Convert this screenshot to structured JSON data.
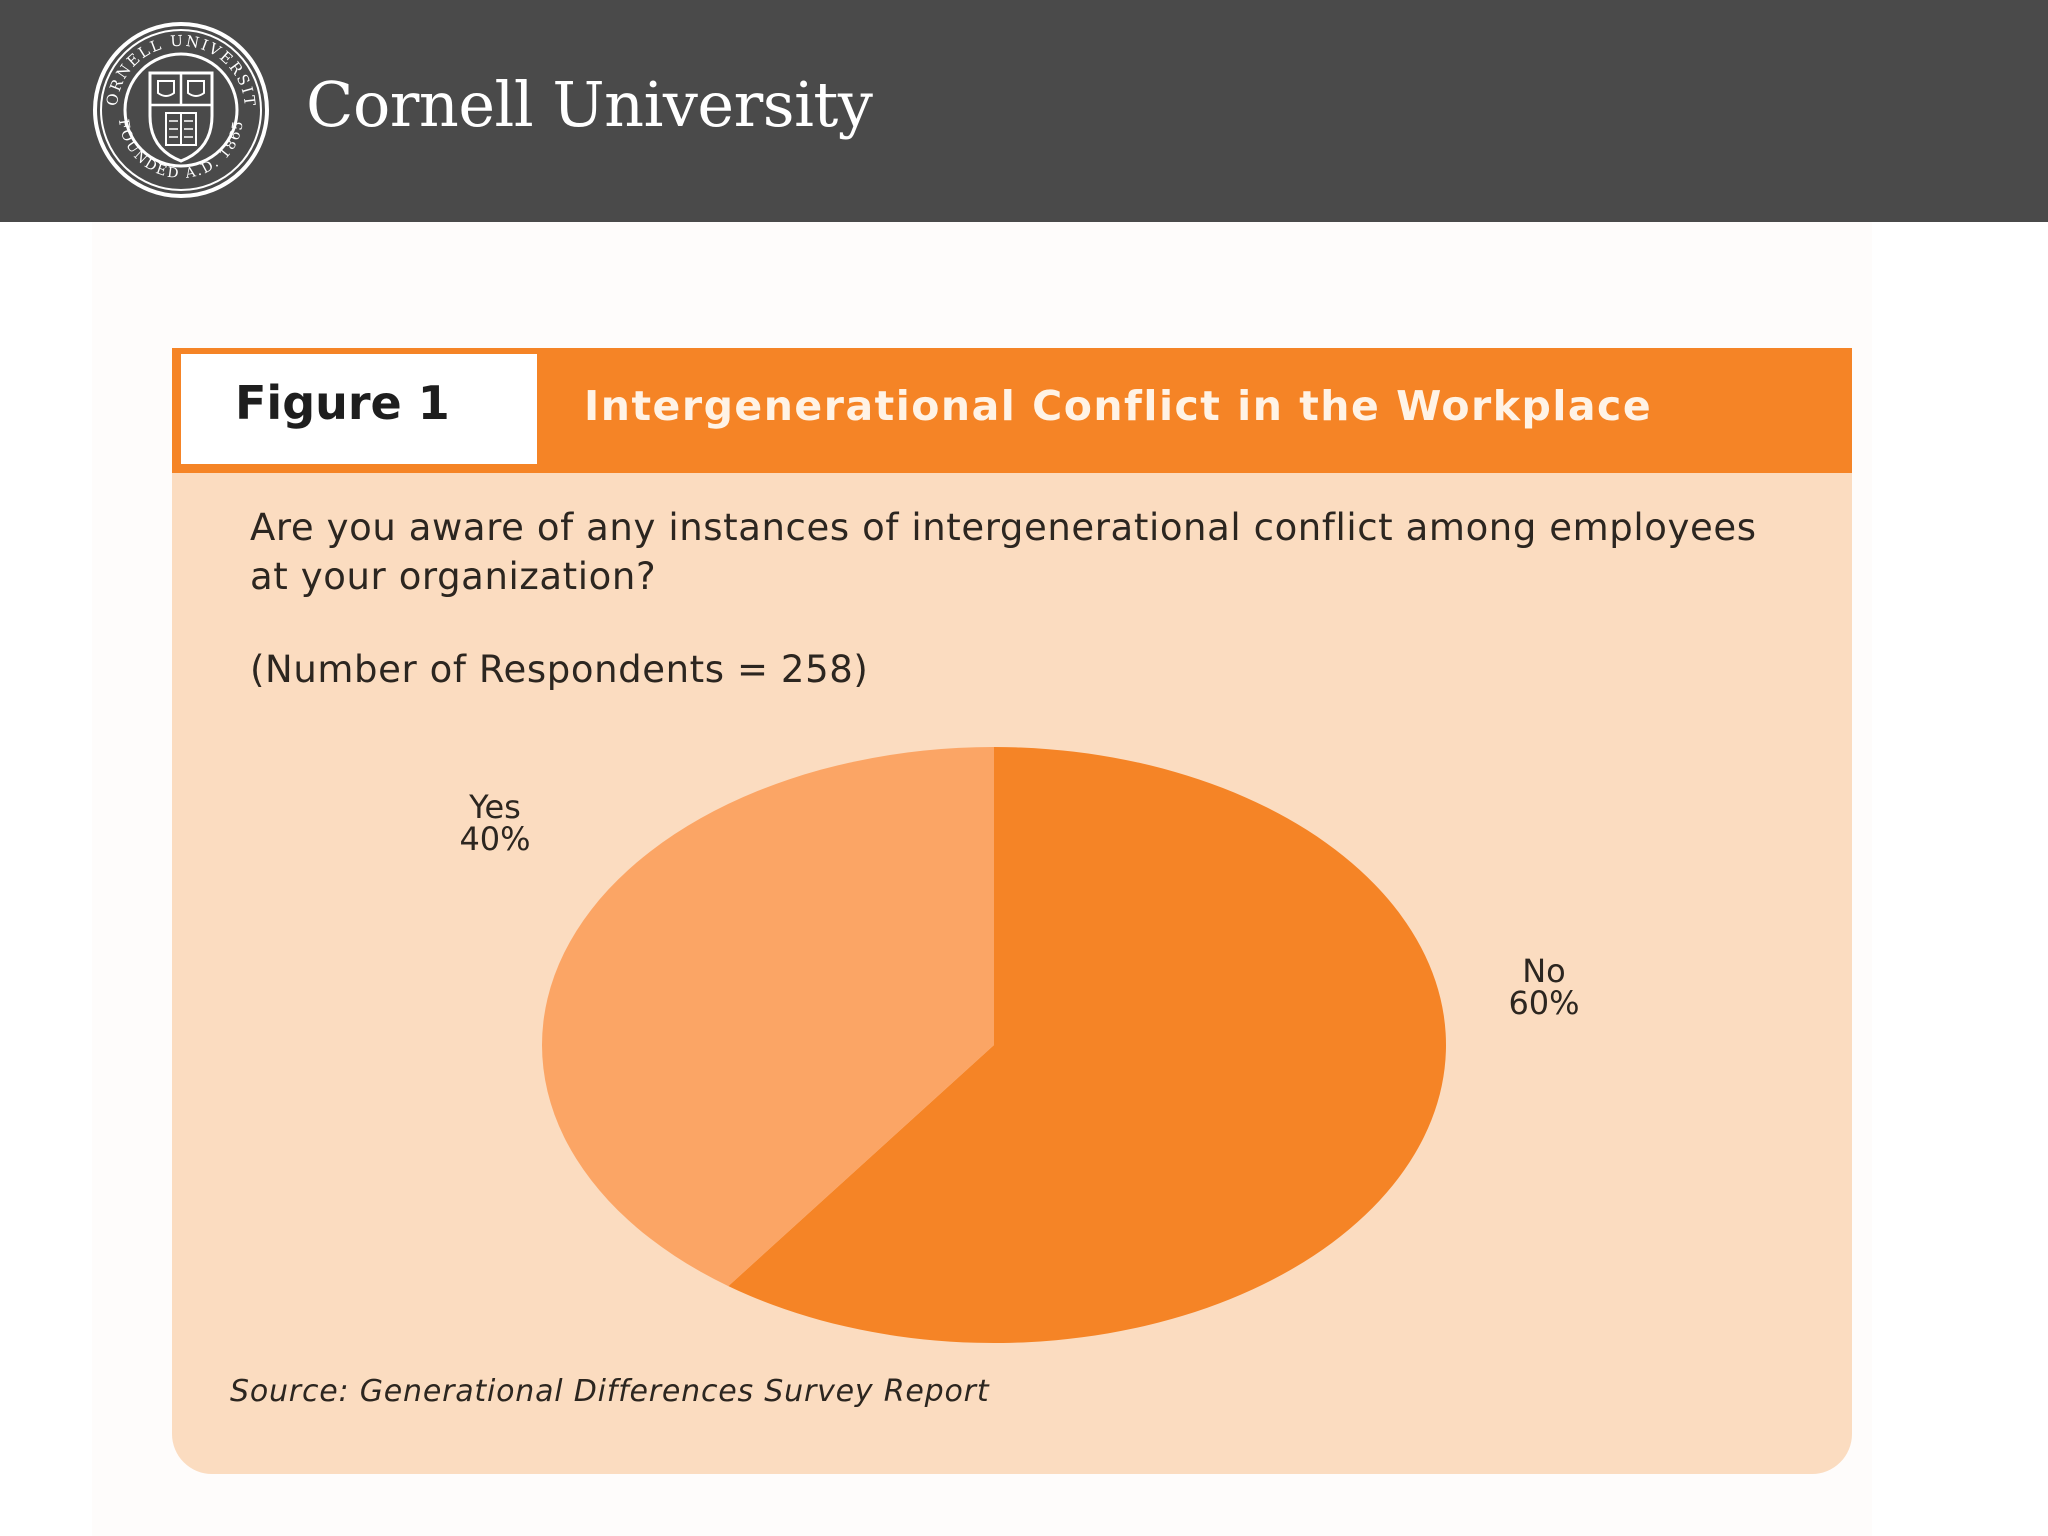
{
  "header": {
    "university_name": "Cornell University",
    "seal_text_top": "CORNELL UNIVERSITY",
    "seal_text_bottom": "FOUNDED A.D. 1865",
    "background_color": "#4a4a4a"
  },
  "figure": {
    "label": "Figure 1",
    "title": "Intergenerational Conflict in the Workplace",
    "question": "Are you aware of any instances of intergenerational conflict among employees at your organization?",
    "respondents": "(Number of Respondents = 258)",
    "source": "Source: Generational Differences Survey Report",
    "accent_color": "#f58426",
    "panel_color": "#fbdcc0"
  },
  "chart_data": {
    "type": "pie",
    "title": "Intergenerational Conflict in the Workplace",
    "slices": [
      {
        "label": "Yes",
        "value": 40,
        "value_label": "40%",
        "color": "#fba565"
      },
      {
        "label": "No",
        "value": 60,
        "value_label": "60%",
        "color": "#f58426"
      }
    ]
  }
}
